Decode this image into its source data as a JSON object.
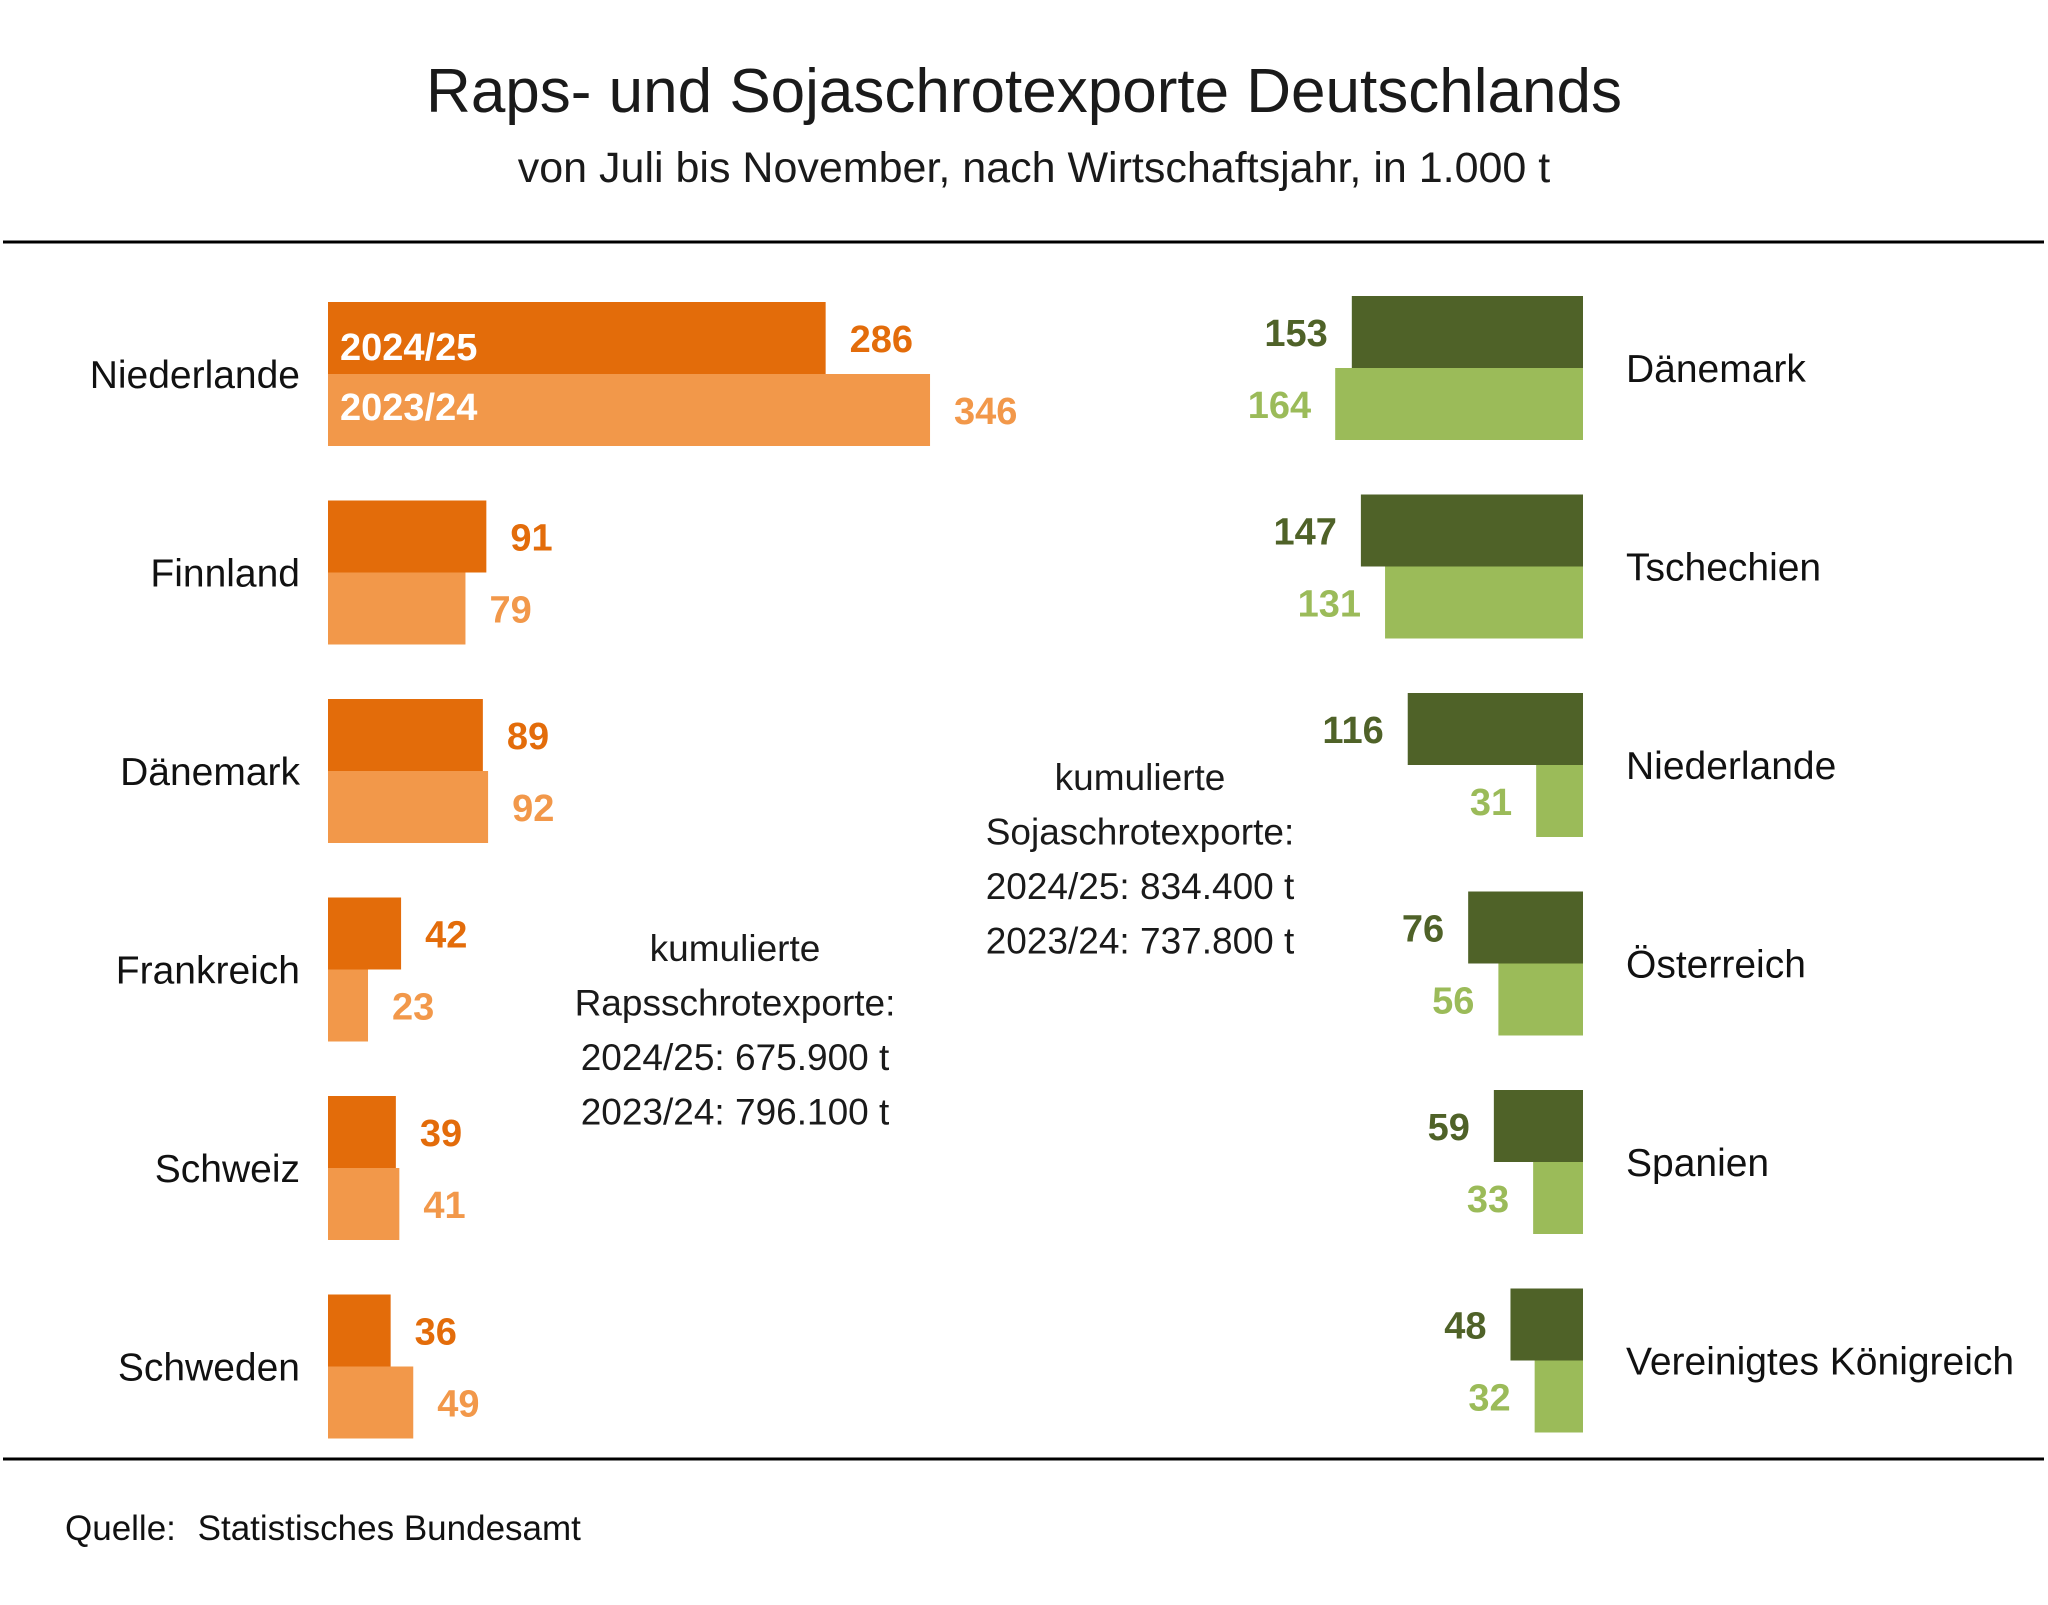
{
  "chart_data": [
    {
      "type": "bar",
      "orientation": "horizontal",
      "title": "Raps- und Sojaschrotexporte Deutschlands",
      "subtitle": "von Juli bis November, nach Wirtschaftsjahr, in 1.000 t",
      "categories": [
        "Niederlande",
        "Finnland",
        "Dänemark",
        "Frankreich",
        "Schweiz",
        "Schweden"
      ],
      "series": [
        {
          "name": "2024/25",
          "values": [
            286,
            91,
            89,
            42,
            39,
            36
          ],
          "color": "#e36c0a"
        },
        {
          "name": "2023/24",
          "values": [
            346,
            79,
            92,
            23,
            41,
            49
          ],
          "color": "#f2984a"
        }
      ],
      "annotation": [
        "kumulierte",
        "Rapsschrotexporte:",
        "2024/25: 675.900 t",
        "2023/24: 796.100 t"
      ]
    },
    {
      "type": "bar",
      "orientation": "horizontal",
      "direction": "right-to-left",
      "categories": [
        "Dänemark",
        "Tschechien",
        "Niederlande",
        "Österreich",
        "Spanien",
        "Vereinigtes Königreich"
      ],
      "series": [
        {
          "name": "2024/25",
          "values": [
            153,
            147,
            116,
            76,
            59,
            48
          ],
          "color": "#4f6228"
        },
        {
          "name": "2023/24",
          "values": [
            164,
            131,
            31,
            56,
            33,
            32
          ],
          "color": "#9bbb59"
        }
      ],
      "annotation": [
        "kumulierte",
        "Sojaschrotexporte:",
        "2024/25: 834.400 t",
        "2023/24: 737.800 t"
      ]
    }
  ],
  "header": {
    "title": "Raps- und Sojaschrotexporte Deutschlands",
    "subtitle": "von Juli bis November, nach Wirtschaftsjahr, in 1.000 t"
  },
  "footer": {
    "source_label": "Quelle:",
    "source": "Statistisches Bundesamt"
  }
}
